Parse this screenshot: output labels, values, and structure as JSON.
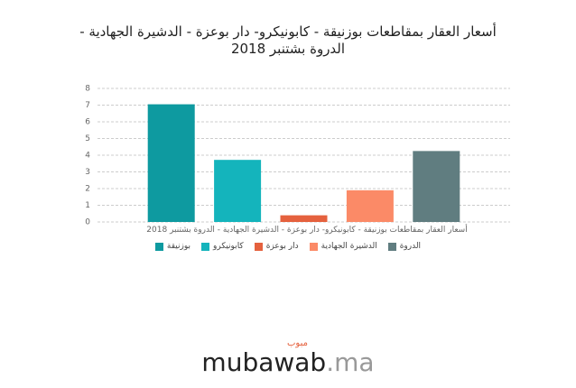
{
  "chart_data": {
    "type": "bar",
    "title": "أسعار العقار بمقاطعات بوزنيقة - كابونيكرو- دار بوعزة - الدشيرة الجهادية - الدروة بشتنبر 2018",
    "categories": [
      "أسعار العقار بمقاطعات بوزنيقة - كابونيكرو- دار بوعزة - الدشيرة الجهادية - الدروة بشتنبر 2018"
    ],
    "series": [
      {
        "name": "بوزنيقة",
        "color": "#0e9aa0",
        "values": [
          7.05
        ]
      },
      {
        "name": "كابونيكرو",
        "color": "#14b4bc",
        "values": [
          3.72
        ]
      },
      {
        "name": "دار بوعزة",
        "color": "#e5613e",
        "values": [
          0.4
        ]
      },
      {
        "name": "الدشيرة الجهادية",
        "color": "#fb8a67",
        "values": [
          1.9
        ]
      },
      {
        "name": "الدروة",
        "color": "#607d80",
        "values": [
          4.25
        ]
      }
    ],
    "ylim": [
      0,
      8
    ],
    "yticks": [
      0,
      1,
      2,
      3,
      4,
      5,
      6,
      7,
      8
    ],
    "grid": true,
    "legend": "bottom"
  },
  "brand": {
    "name": "mubawab",
    "domain": ".ma",
    "arabic": "مبوب"
  }
}
